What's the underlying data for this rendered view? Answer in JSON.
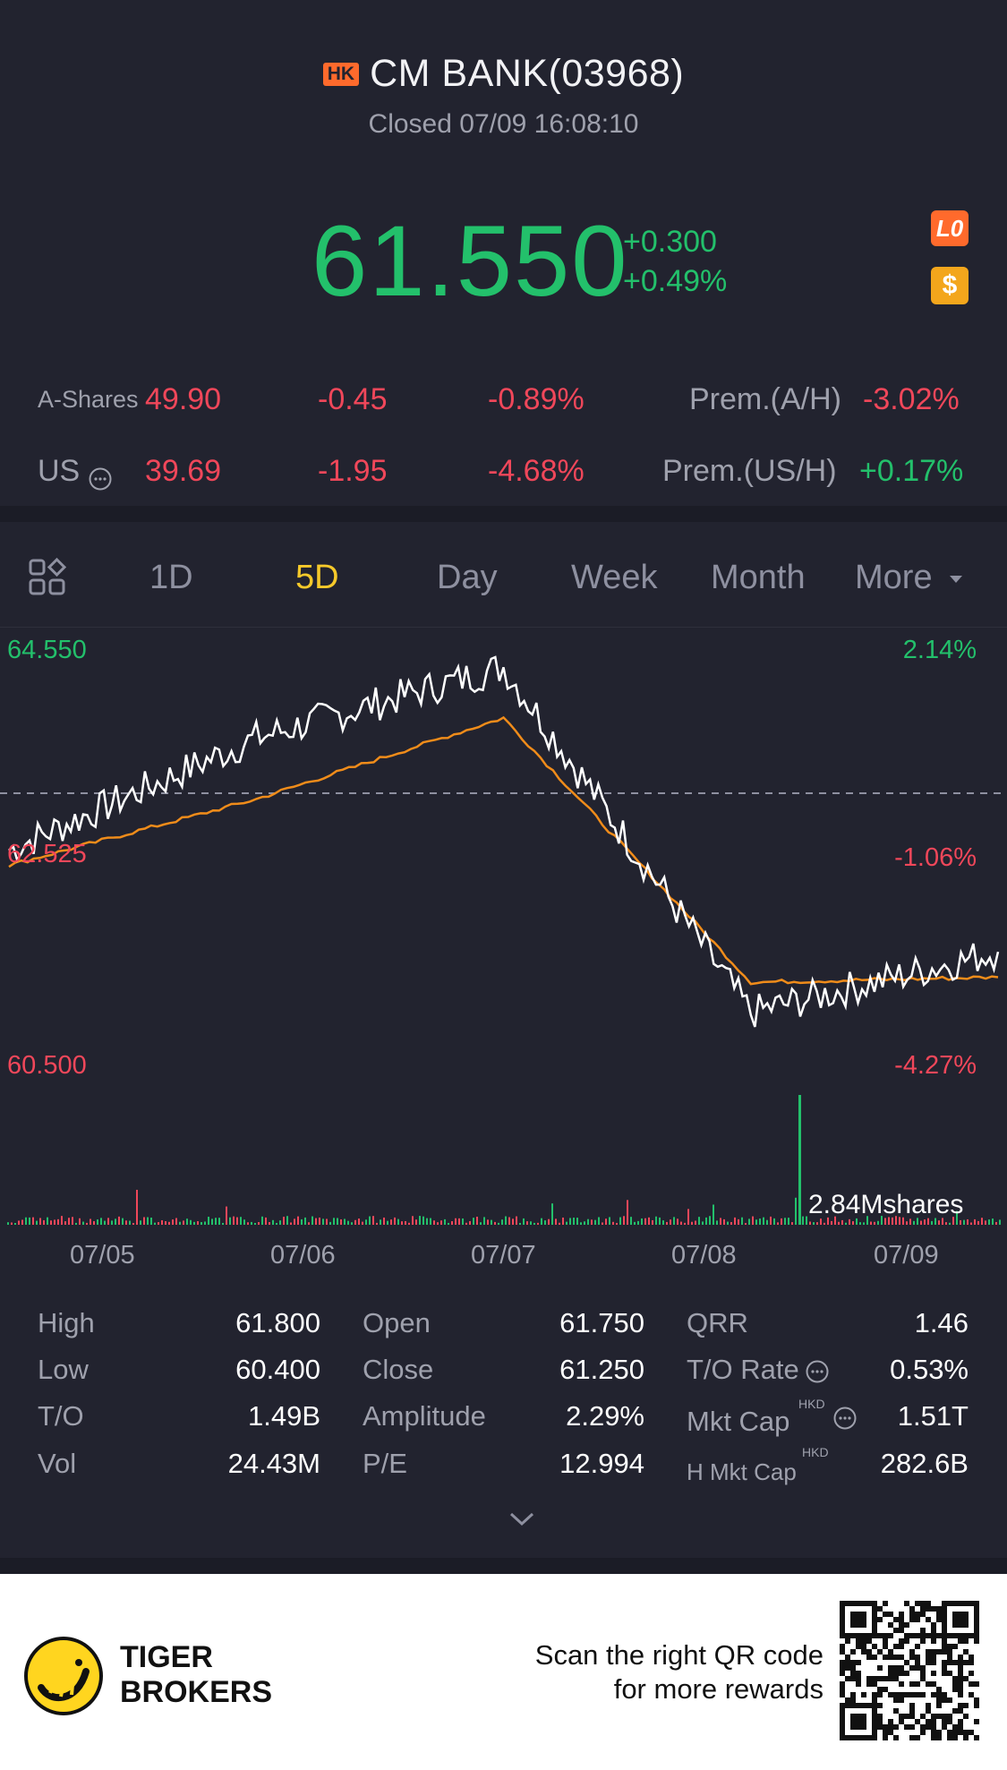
{
  "header": {
    "market_badge": "HK",
    "title": "CM BANK(03968)",
    "status": "Closed 07/09 16:08:10"
  },
  "quote": {
    "price": "61.550",
    "change": "+0.300",
    "change_pct": "+0.49%",
    "level_badge": "L0",
    "dollar_badge": "$"
  },
  "a_shares": {
    "label": "A-Shares",
    "price": "49.90",
    "change": "-0.45",
    "change_pct": "-0.89%",
    "prem_label": "Prem.(A/H)",
    "prem_value": "-3.02%"
  },
  "us": {
    "label": "US",
    "price": "39.69",
    "change": "-1.95",
    "change_pct": "-4.68%",
    "prem_label": "Prem.(US/H)",
    "prem_value": "+0.17%"
  },
  "tabs": [
    {
      "label": "1D"
    },
    {
      "label": "5D"
    },
    {
      "label": "Day"
    },
    {
      "label": "Week"
    },
    {
      "label": "Month"
    },
    {
      "label": "More"
    }
  ],
  "chart": {
    "y_high": "64.550",
    "y_mid": "62.525",
    "y_low": "60.500",
    "pct_high": "2.14%",
    "pct_mid": "-1.06%",
    "pct_low": "-4.27%",
    "volume_label": "2.84Mshares",
    "dates": [
      "07/05",
      "07/06",
      "07/07",
      "07/08",
      "07/09"
    ]
  },
  "chart_data": {
    "type": "line",
    "x": [
      "07/05",
      "07/06",
      "07/07",
      "07/08",
      "07/09"
    ],
    "ylim": [
      60.5,
      64.55
    ],
    "series": [
      {
        "values": [
          62.6,
          63.7,
          64.4,
          61.0,
          61.6
        ]
      },
      {
        "values": [
          62.45,
          63.1,
          63.9,
          61.3,
          61.35
        ]
      }
    ]
  },
  "stats": {
    "col1": [
      {
        "label": "High",
        "value": "61.800"
      },
      {
        "label": "Low",
        "value": "60.400"
      },
      {
        "label": "T/O",
        "value": "1.49B"
      },
      {
        "label": "Vol",
        "value": "24.43M"
      }
    ],
    "col2": [
      {
        "label": "Open",
        "value": "61.750"
      },
      {
        "label": "Close",
        "value": "61.250"
      },
      {
        "label": "Amplitude",
        "value": "2.29%"
      },
      {
        "label": "P/E",
        "value": "12.994"
      }
    ],
    "col3": [
      {
        "label": "QRR",
        "value": "1.46"
      },
      {
        "label": "T/O Rate",
        "value": "0.53%"
      },
      {
        "label": "Mkt Cap",
        "value": "1.51T",
        "unit": "HKD"
      },
      {
        "label": "H Mkt Cap",
        "value": "282.6B",
        "unit": "HKD"
      }
    ]
  },
  "footer": {
    "brand_line1": "TIGER",
    "brand_line2": "BROKERS",
    "promo_line1": "Scan the right QR code",
    "promo_line2": "for more rewards"
  }
}
